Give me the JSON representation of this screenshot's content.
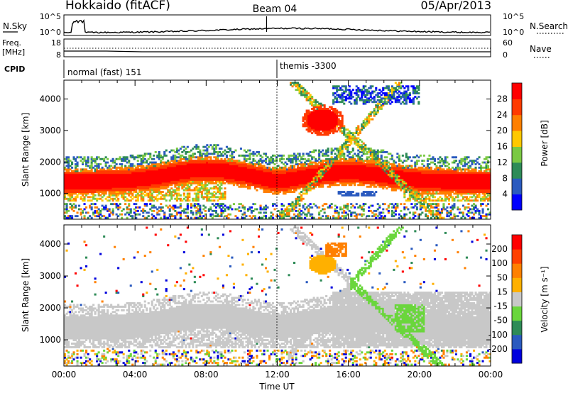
{
  "header": {
    "station": "Hokkaido (fitACF)",
    "beam": "Beam 04",
    "date": "05/Apr/2013"
  },
  "chart_data": [
    {
      "type": "line",
      "name": "noise-panel",
      "left_labels": [
        "N.Sky"
      ],
      "right_labels": [
        "N.Search"
      ],
      "left_ticks": [
        "10^5",
        "10^0"
      ],
      "right_ticks": [
        "10^5",
        "10^0"
      ]
    },
    {
      "type": "line",
      "name": "freq-panel",
      "left_labels": [
        "Freq.",
        "[MHz]"
      ],
      "right_labels": [
        "Nave"
      ],
      "left_ticks": [
        "18",
        "8"
      ],
      "right_ticks": [
        "60",
        "0"
      ]
    },
    {
      "type": "table",
      "name": "cpid-panel",
      "label": "CPID",
      "segments": [
        {
          "start": "00:00",
          "end": "12:00",
          "text": "normal (fast) 151"
        },
        {
          "start": "12:00",
          "end": "24:00",
          "text": "themis -3300"
        }
      ]
    },
    {
      "type": "heatmap",
      "name": "power-panel",
      "ylabel": "Slant Range [km]",
      "ylim": [
        180,
        4600
      ],
      "yticks": [
        1000,
        2000,
        3000,
        4000
      ],
      "xlim": [
        0,
        24
      ],
      "colorbar": {
        "label": "Power [dB]",
        "ticks": [
          4,
          8,
          12,
          16,
          20,
          24,
          28
        ],
        "colors": [
          "#0000ff",
          "#2a5abf",
          "#2e8b57",
          "#7ac943",
          "#ffc800",
          "#ff7f00",
          "#ff3a00",
          "#ff0000"
        ]
      }
    },
    {
      "type": "heatmap",
      "name": "velocity-panel",
      "ylabel": "Slant Range [km]",
      "ylim": [
        180,
        4600
      ],
      "yticks": [
        1000,
        2000,
        3000,
        4000
      ],
      "xlim": [
        0,
        24
      ],
      "colorbar": {
        "label": "Velocity [m s⁻¹]",
        "ticks": [
          200,
          100,
          50,
          15,
          -15,
          -50,
          -100,
          -200
        ],
        "colors": [
          "#0000dd",
          "#2a5abf",
          "#2e8b57",
          "#6ad63c",
          "#c8c8c8",
          "#ffb000",
          "#ff8000",
          "#ff4000",
          "#ff0000"
        ]
      }
    }
  ],
  "xaxis": {
    "label": "Time UT",
    "ticks": [
      "00:00",
      "04:00",
      "08:00",
      "12:00",
      "16:00",
      "20:00",
      "00:00"
    ]
  }
}
